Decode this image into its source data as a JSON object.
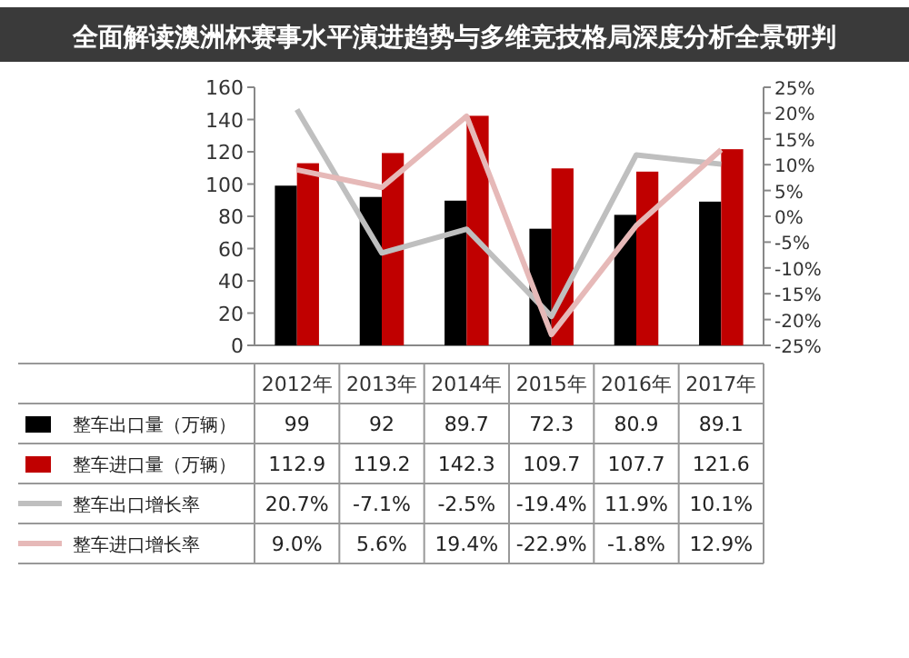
{
  "chart_data": {
    "type": "bar",
    "title": "全面解读澳洲杯赛事水平演进趋势与多维竞技格局深度分析全景研判",
    "categories": [
      "2012年",
      "2013年",
      "2014年",
      "2015年",
      "2016年",
      "2017年"
    ],
    "series": [
      {
        "name": "整车出口量（万辆）",
        "color": "#000000",
        "values": [
          99,
          92,
          89.7,
          72.3,
          80.9,
          89.1
        ],
        "value_labels": [
          "99",
          "92",
          "89.7",
          "72.3",
          "80.9",
          "89.1"
        ]
      },
      {
        "name": "整车进口量（万辆）",
        "color": "#c00000",
        "values": [
          112.9,
          119.2,
          142.3,
          109.7,
          107.7,
          121.6
        ],
        "value_labels": [
          "112.9",
          "119.2",
          "142.3",
          "109.7",
          "107.7",
          "121.6"
        ]
      },
      {
        "name": "整车出口增长率",
        "type": "line",
        "axis": "y2",
        "color": "#bfbfbf",
        "values": [
          20.7,
          -7.1,
          -2.5,
          -19.4,
          11.9,
          10.1
        ],
        "value_labels": [
          "20.7%",
          "-7.1%",
          "-2.5%",
          "-19.4%",
          "11.9%",
          "10.1%"
        ]
      },
      {
        "name": "整车进口增长率",
        "type": "line",
        "axis": "y2",
        "color": "#e6b9b8",
        "values": [
          9.0,
          5.6,
          19.4,
          -22.9,
          -1.8,
          12.9
        ],
        "value_labels": [
          "9.0%",
          "5.6%",
          "19.4%",
          "-22.9%",
          "-1.8%",
          "12.9%"
        ]
      }
    ],
    "ylim": [
      0,
      160
    ],
    "yticks": [
      0,
      20,
      40,
      60,
      80,
      100,
      120,
      140,
      160
    ],
    "y2lim": [
      -25,
      25
    ],
    "y2ticks": [
      {
        "value": -25,
        "label": "-25%"
      },
      {
        "value": -20,
        "label": "-20%"
      },
      {
        "value": -15,
        "label": "-15%"
      },
      {
        "value": -10,
        "label": "-10%"
      },
      {
        "value": -5,
        "label": "-5%"
      },
      {
        "value": 0,
        "label": "0%"
      },
      {
        "value": 5,
        "label": "5%"
      },
      {
        "value": 10,
        "label": "10%"
      },
      {
        "value": 15,
        "label": "15%"
      },
      {
        "value": 20,
        "label": "20%"
      },
      {
        "value": 25,
        "label": "25%"
      }
    ],
    "legend": "bottom"
  }
}
